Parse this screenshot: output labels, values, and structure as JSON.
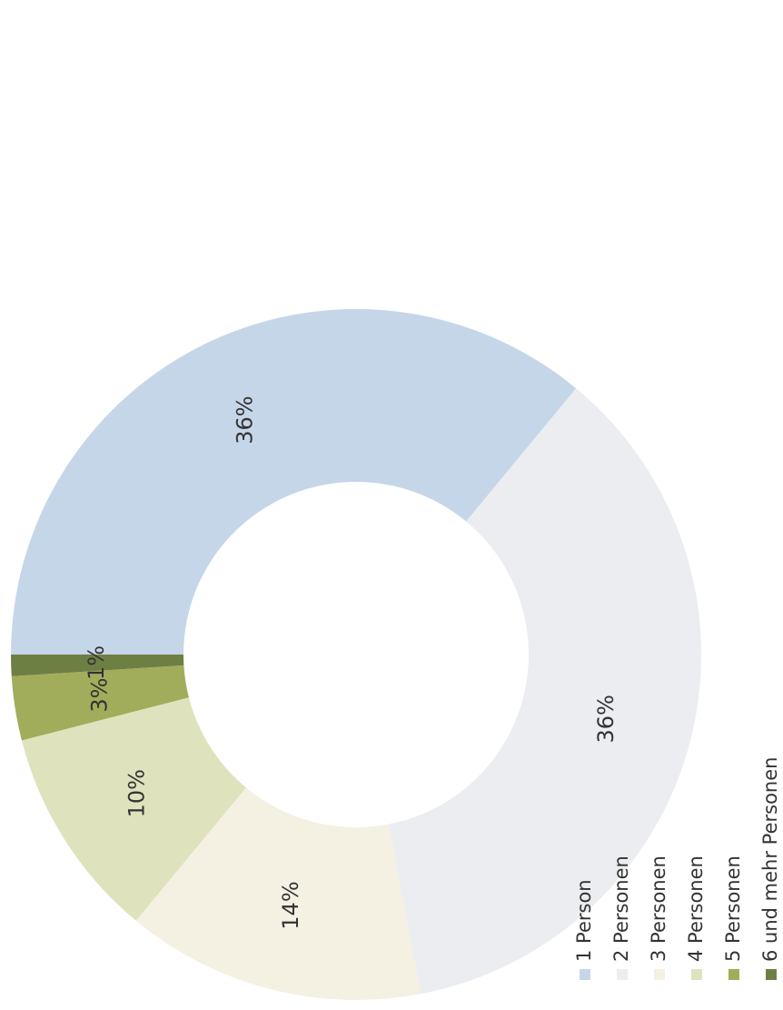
{
  "chart_data": {
    "type": "donut",
    "categories": [
      "1 Person",
      "2 Personen",
      "3 Personen",
      "4 Personen",
      "5 Personen",
      "6 und mehr Personen"
    ],
    "values": [
      36,
      36,
      14,
      10,
      3,
      1
    ],
    "value_labels": [
      "36%",
      "36%",
      "14%",
      "10%",
      "3%",
      "1%"
    ],
    "colors": [
      "#c6d6e9",
      "#ecedf1",
      "#f4f1e3",
      "#dee3bd",
      "#a2ad5b",
      "#6e7f44"
    ]
  }
}
